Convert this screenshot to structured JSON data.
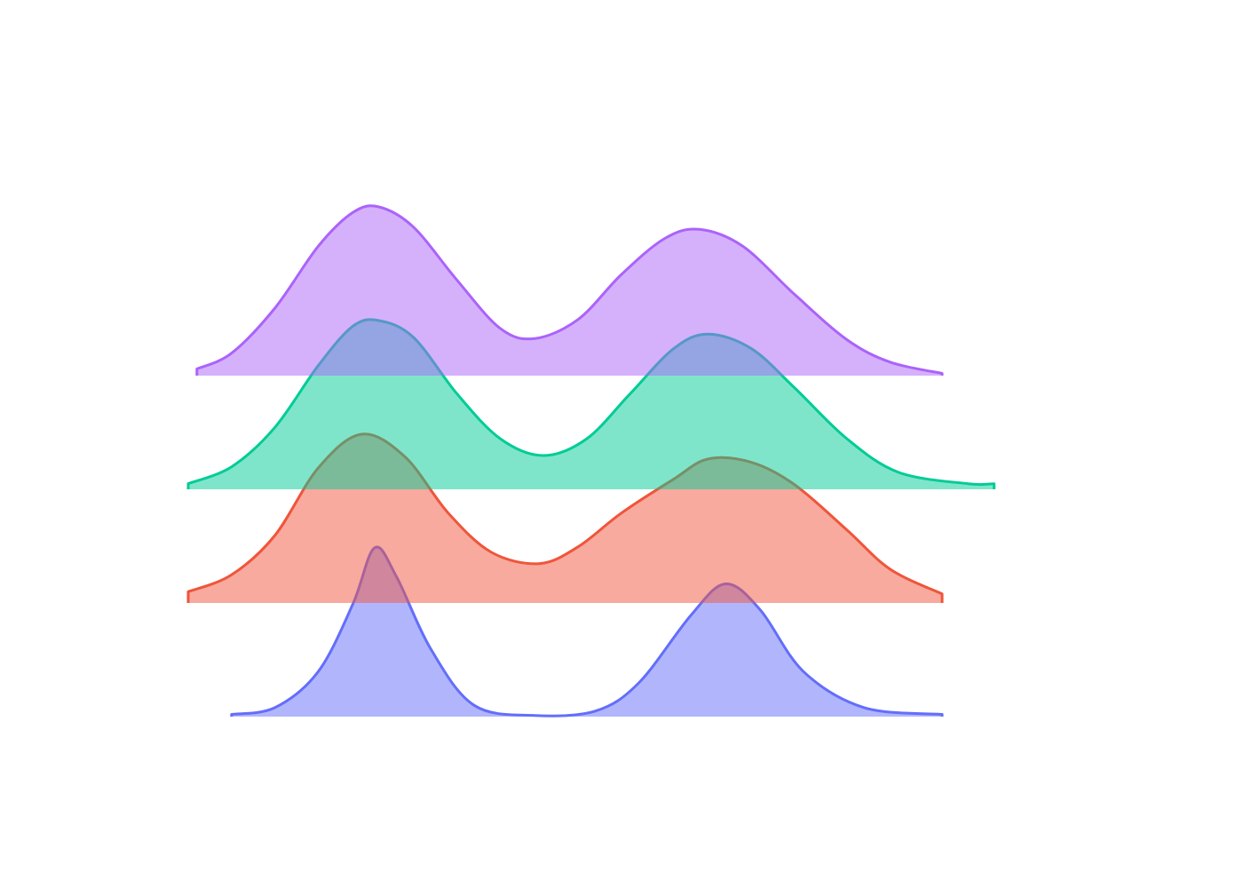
{
  "chart_data": {
    "type": "area",
    "title": "",
    "xlabel": "",
    "ylabel": "",
    "axes_visible": false,
    "grid": false,
    "legend": "none",
    "xlim": [
      0,
      1
    ],
    "series": [
      {
        "color": "#636efa",
        "peak_height": 1.5,
        "points": [
          [
            0.05,
            0.02
          ],
          [
            0.1,
            0.08
          ],
          [
            0.15,
            0.4
          ],
          [
            0.19,
            1.0
          ],
          [
            0.215,
            1.5
          ],
          [
            0.24,
            1.25
          ],
          [
            0.28,
            0.6
          ],
          [
            0.33,
            0.1
          ],
          [
            0.4,
            0.01
          ],
          [
            0.47,
            0.05
          ],
          [
            0.52,
            0.3
          ],
          [
            0.58,
            0.9
          ],
          [
            0.62,
            1.18
          ],
          [
            0.66,
            0.95
          ],
          [
            0.71,
            0.4
          ],
          [
            0.78,
            0.08
          ],
          [
            0.87,
            0.02
          ]
        ]
      },
      {
        "color": "#ef553b",
        "peak_height": 1.5,
        "points": [
          [
            0.0,
            0.1
          ],
          [
            0.05,
            0.25
          ],
          [
            0.1,
            0.6
          ],
          [
            0.15,
            1.2
          ],
          [
            0.2,
            1.5
          ],
          [
            0.25,
            1.3
          ],
          [
            0.3,
            0.8
          ],
          [
            0.35,
            0.45
          ],
          [
            0.405,
            0.35
          ],
          [
            0.45,
            0.5
          ],
          [
            0.5,
            0.8
          ],
          [
            0.56,
            1.1
          ],
          [
            0.6,
            1.28
          ],
          [
            0.65,
            1.25
          ],
          [
            0.7,
            1.05
          ],
          [
            0.76,
            0.65
          ],
          [
            0.81,
            0.3
          ],
          [
            0.87,
            0.08
          ]
        ]
      },
      {
        "color": "#00cc96",
        "peak_height": 1.5,
        "points": [
          [
            0.0,
            0.05
          ],
          [
            0.05,
            0.2
          ],
          [
            0.1,
            0.55
          ],
          [
            0.15,
            1.1
          ],
          [
            0.19,
            1.45
          ],
          [
            0.22,
            1.5
          ],
          [
            0.26,
            1.35
          ],
          [
            0.31,
            0.85
          ],
          [
            0.36,
            0.45
          ],
          [
            0.41,
            0.3
          ],
          [
            0.46,
            0.45
          ],
          [
            0.51,
            0.85
          ],
          [
            0.56,
            1.25
          ],
          [
            0.6,
            1.38
          ],
          [
            0.65,
            1.25
          ],
          [
            0.7,
            0.9
          ],
          [
            0.76,
            0.45
          ],
          [
            0.82,
            0.15
          ],
          [
            0.9,
            0.05
          ],
          [
            0.93,
            0.05
          ]
        ]
      },
      {
        "color": "#ab63fa",
        "peak_height": 1.5,
        "points": [
          [
            0.01,
            0.06
          ],
          [
            0.05,
            0.2
          ],
          [
            0.1,
            0.6
          ],
          [
            0.15,
            1.15
          ],
          [
            0.19,
            1.45
          ],
          [
            0.22,
            1.5
          ],
          [
            0.26,
            1.32
          ],
          [
            0.31,
            0.85
          ],
          [
            0.36,
            0.42
          ],
          [
            0.4,
            0.33
          ],
          [
            0.45,
            0.5
          ],
          [
            0.5,
            0.9
          ],
          [
            0.55,
            1.22
          ],
          [
            0.59,
            1.3
          ],
          [
            0.64,
            1.15
          ],
          [
            0.7,
            0.72
          ],
          [
            0.76,
            0.32
          ],
          [
            0.81,
            0.12
          ],
          [
            0.87,
            0.02
          ]
        ]
      }
    ]
  }
}
